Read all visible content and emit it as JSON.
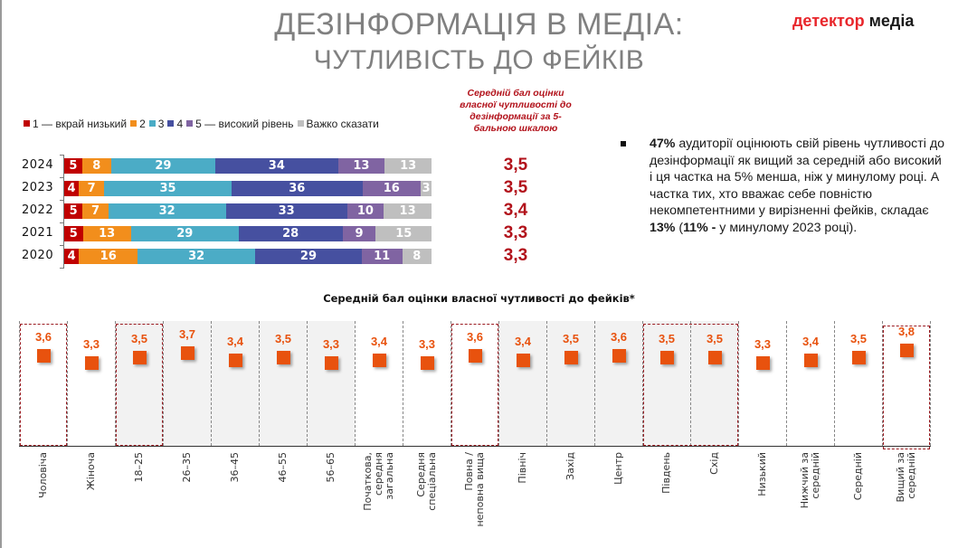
{
  "header": {
    "title_line1": "ДЕЗІНФОРМАЦІЯ В МЕДІА:",
    "title_line2": "ЧУТЛИВІСТЬ ДО ФЕЙКІВ",
    "logo_part1": "детектор",
    "logo_part2": " медіа"
  },
  "colors": {
    "level1": "#c00000",
    "level2": "#f28e1c",
    "level3": "#4bacc6",
    "level4": "#4650a0",
    "level5": "#8064a2",
    "hard_to_say": "#bfbfbf",
    "marker": "#e8520e",
    "highlight": "#9b1c22",
    "avg_text": "#b2121b"
  },
  "chart_data": [
    {
      "type": "bar",
      "orientation": "horizontal",
      "stacked": true,
      "unit": "%",
      "unit_label": "%",
      "categories": [
        "2024",
        "2023",
        "2022",
        "2021",
        "2020"
      ],
      "series": [
        {
          "name": "1 — вкрай низький",
          "color_key": "level1",
          "values": [
            5,
            4,
            5,
            5,
            4
          ]
        },
        {
          "name": "2",
          "color_key": "level2",
          "values": [
            8,
            7,
            7,
            13,
            16
          ]
        },
        {
          "name": "3",
          "color_key": "level3",
          "values": [
            29,
            35,
            32,
            29,
            32
          ]
        },
        {
          "name": "4",
          "color_key": "level4",
          "values": [
            34,
            36,
            33,
            28,
            29
          ]
        },
        {
          "name": "5 — високий рівень",
          "color_key": "level5",
          "values": [
            13,
            16,
            10,
            9,
            11
          ]
        },
        {
          "name": "Важко сказати",
          "color_key": "hard_to_say",
          "values": [
            13,
            3,
            13,
            15,
            8
          ]
        }
      ],
      "legend_position": "top"
    },
    {
      "type": "table",
      "title": "Середній бал оцінки власної чутливості до дезінформації за 5-бальною шкалою",
      "rows": [
        {
          "year": "2024",
          "value": "3,5"
        },
        {
          "year": "2023",
          "value": "3,5"
        },
        {
          "year": "2022",
          "value": "3,4"
        },
        {
          "year": "2021",
          "value": "3,3"
        },
        {
          "year": "2020",
          "value": "3,3"
        }
      ]
    },
    {
      "type": "scatter",
      "title": "Середній бал оцінки власної чутливості до фейків*",
      "categories": [
        "Чоловіча",
        "Жіноча",
        "18–25",
        "26–35",
        "36–45",
        "46–55",
        "56–65",
        "Початкова,\nсередня\nзагальна",
        "Середня\nспеціальна",
        "Повна /\nнеповна вища",
        "Північ",
        "Захід",
        "Центр",
        "Південь",
        "Схід",
        "Низький",
        "Нижчий за\nсередній",
        "Середній",
        "Вищий за\nсередній"
      ],
      "values": [
        3.6,
        3.3,
        3.5,
        3.7,
        3.4,
        3.5,
        3.3,
        3.4,
        3.3,
        3.6,
        3.4,
        3.5,
        3.6,
        3.5,
        3.5,
        3.3,
        3.4,
        3.5,
        3.8
      ],
      "value_labels": [
        "3,6",
        "3,3",
        "3,5",
        "3,7",
        "3,4",
        "3,5",
        "3,3",
        "3,4",
        "3,3",
        "3,6",
        "3,4",
        "3,5",
        "3,6",
        "3,5",
        "3,5",
        "3,3",
        "3,4",
        "3,5",
        "3,8"
      ],
      "shaded_groups": [
        [
          2,
          6
        ],
        [
          10,
          14
        ]
      ],
      "highlighted_groups": [
        [
          0,
          0
        ],
        [
          2,
          2
        ],
        [
          9,
          9
        ],
        [
          13,
          14
        ],
        [
          18,
          18
        ]
      ],
      "grid": true
    }
  ],
  "stacked_legend": [
    {
      "label": "1 — вкрай низький",
      "color_key": "level1"
    },
    {
      "label": "2",
      "color_key": "level2"
    },
    {
      "label": "3",
      "color_key": "level3"
    },
    {
      "label": "4",
      "color_key": "level4"
    },
    {
      "label": "5 — високий рівень",
      "color_key": "level5"
    },
    {
      "label": "Важко сказати",
      "color_key": "hard_to_say"
    }
  ],
  "avg_heading": "Середній бал оцінки власної чутливості до дезінформації за 5-бальною шкалою",
  "bullet": {
    "bold1": "47%",
    "text1": " аудиторії оцінюють свій рівень чутливості до дезінформації як вищий за середній або високий і ця частка на 5% менша, ніж у минулому році.  А частка тих, хто вважає себе повністю некомпетентними у вирізненні фейків, складає ",
    "bold2": "13%",
    "text2": " (",
    "bold3": "11% -",
    "text3": " у минулому 2023 році)."
  },
  "sub_chart_title": "Середній бал оцінки власної чутливості до фейків*"
}
